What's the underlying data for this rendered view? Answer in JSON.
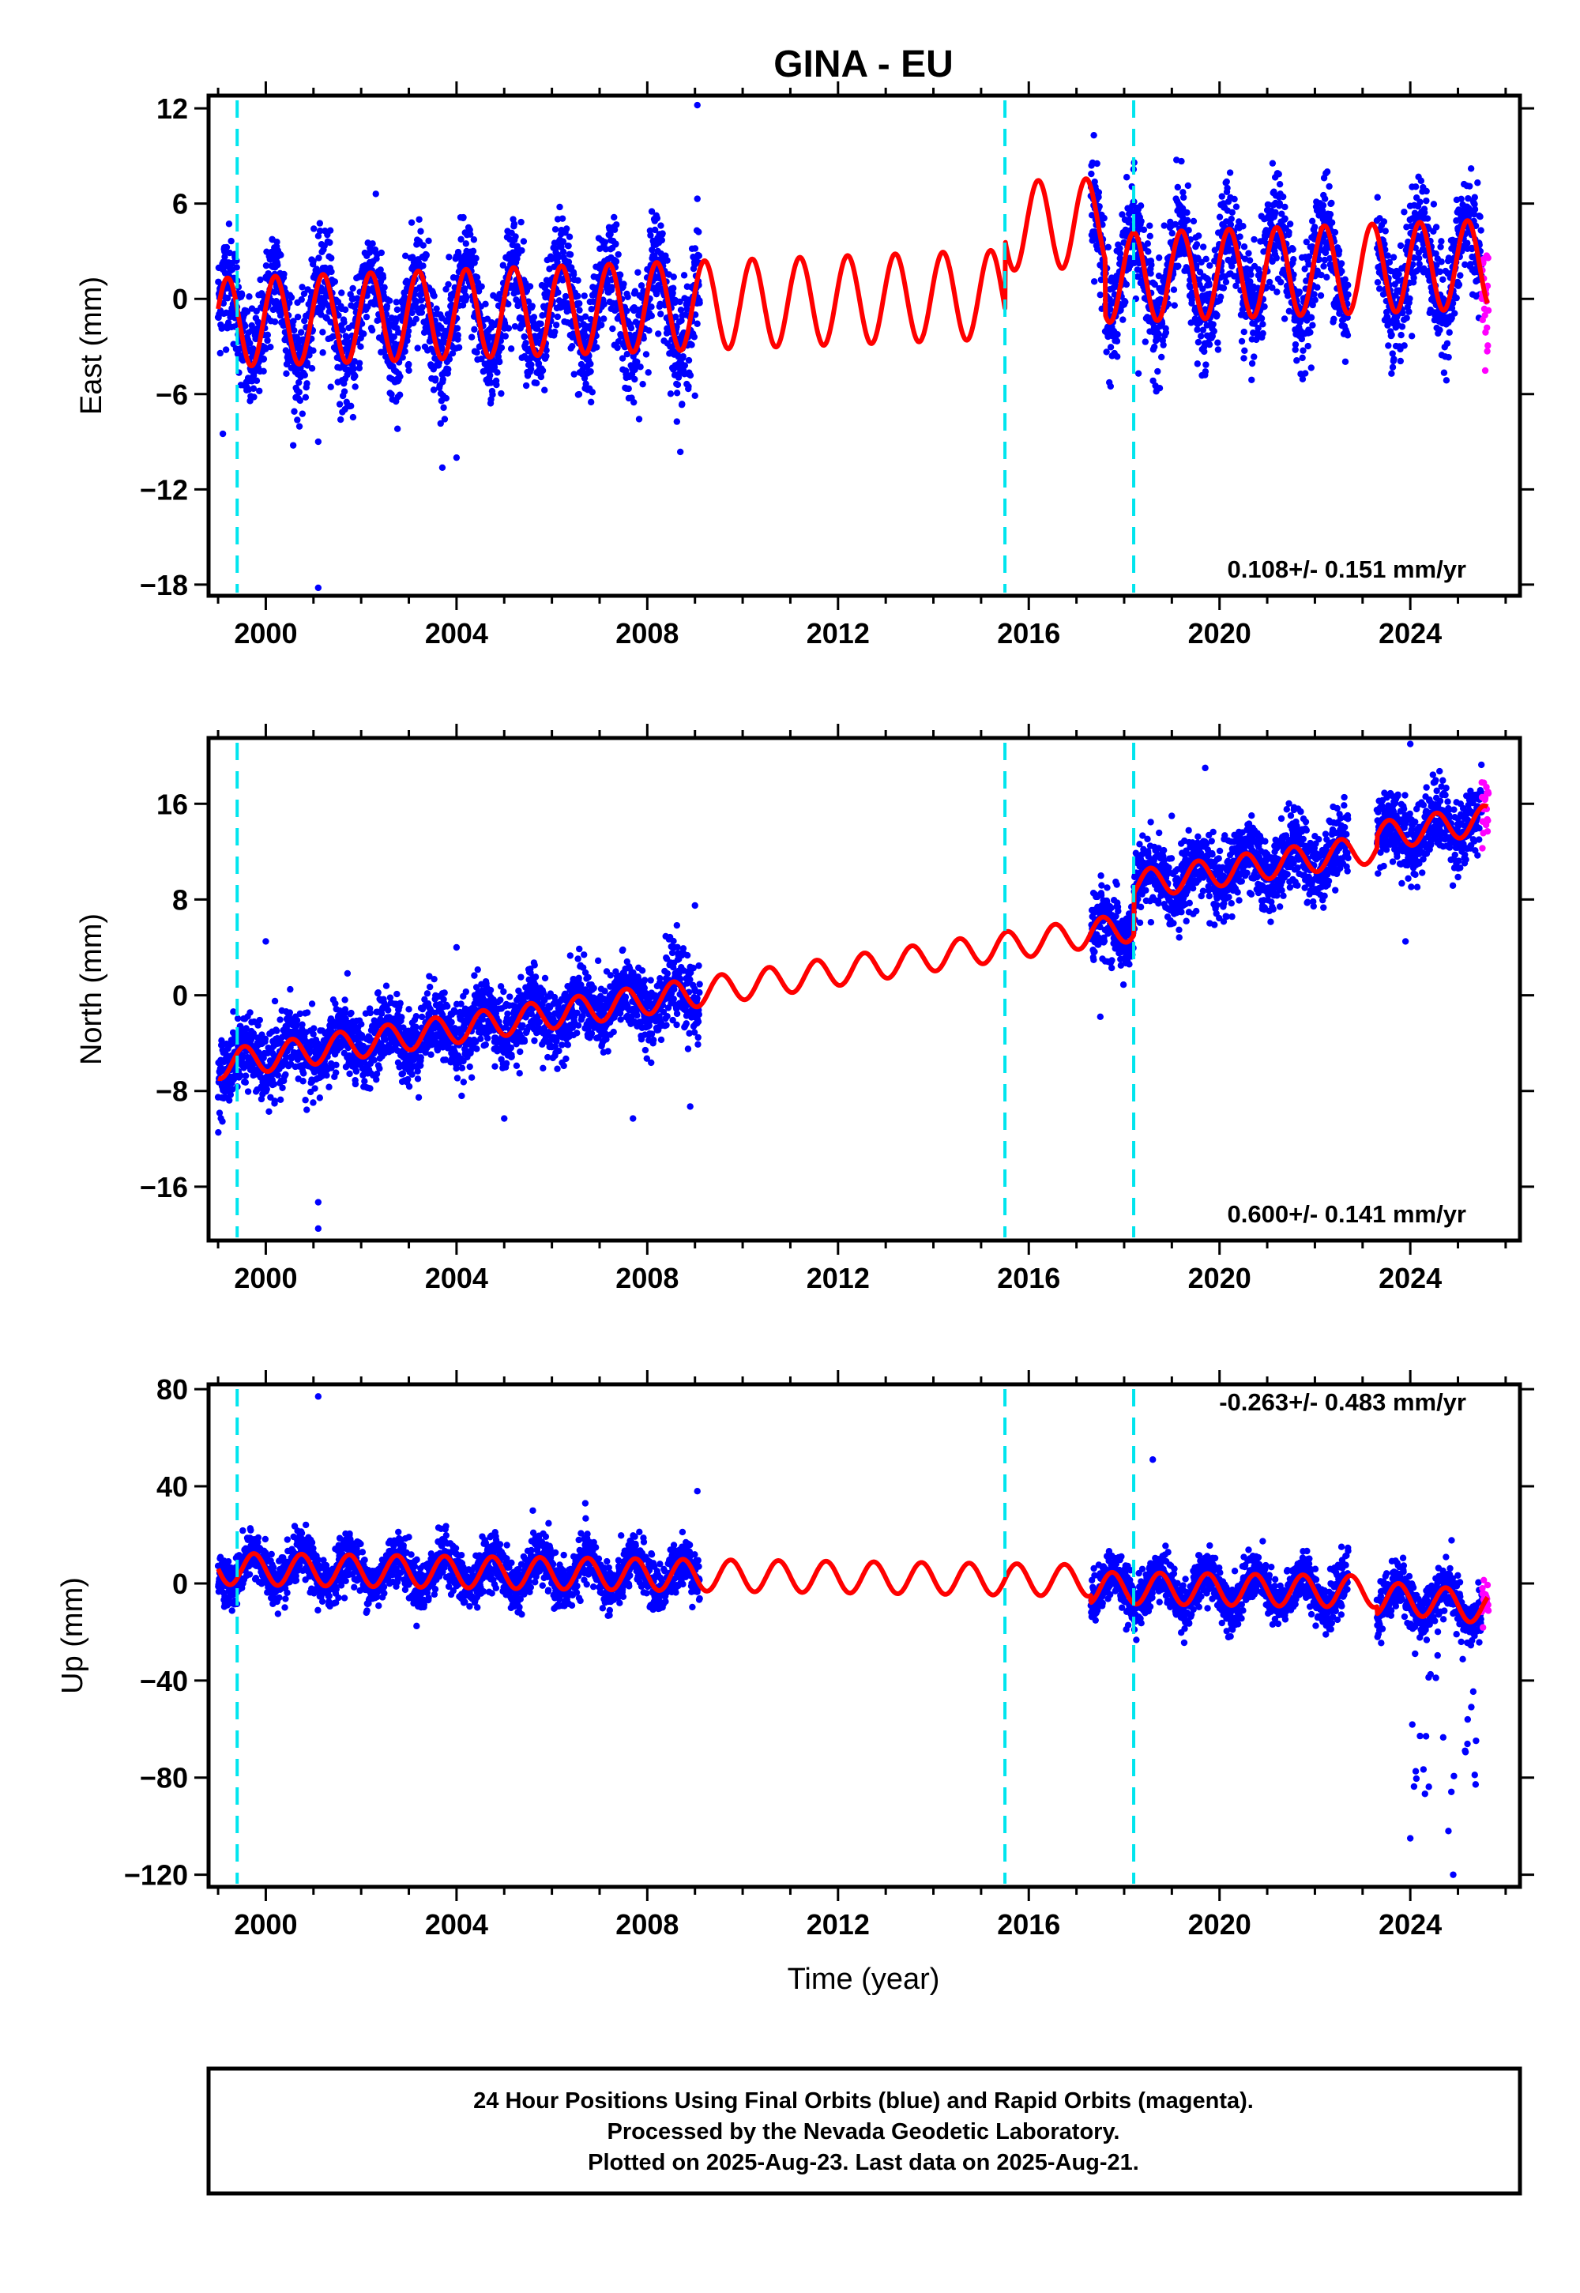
{
  "title": "GINA - EU",
  "xlabel": "Time (year)",
  "footer": {
    "line1": "24 Hour Positions Using Final Orbits (blue) and Rapid Orbits (magenta).",
    "line2": "Processed by the Nevada Geodetic Laboratory.",
    "line3": "Plotted on 2025-Aug-23. Last data on 2025-Aug-21."
  },
  "colors": {
    "final": "#0000ff",
    "rapid": "#ff00ff",
    "model": "#ff0000",
    "steps": "#00e5ee"
  },
  "chart_data": [
    {
      "type": "scatter",
      "ylabel": "East (mm)",
      "rate": "0.108+/- 0.151 mm/yr",
      "xlim": [
        1998.8,
        2026.3
      ],
      "ylim": [
        -18.7,
        12.8
      ],
      "x_ticks": [
        2000,
        2004,
        2008,
        2012,
        2016,
        2020,
        2024
      ],
      "y_ticks": [
        12,
        6,
        0,
        -6,
        -12,
        -18
      ],
      "step_lines": [
        1999.4,
        2015.5,
        2018.2
      ],
      "gaps": [
        [
          2009.1,
          2017.3
        ],
        [
          2022.7,
          2023.3
        ]
      ],
      "trend": {
        "x0": 1999.0,
        "y0": -1.5,
        "slope": 0.108,
        "amp": 2.8,
        "phase": 0.95,
        "offsets": [
          [
            2015.5,
            4.3
          ],
          [
            2017.6,
            -3.5
          ]
        ]
      },
      "scatter_sigma": 1.7,
      "outliers": [
        [
          2001.1,
          -18.2
        ],
        [
          2009.05,
          12.2
        ],
        [
          2009.05,
          6.3
        ],
        [
          2004.0,
          -10.0
        ],
        [
          2018.3,
          -4.7
        ],
        [
          1999.1,
          -8.5
        ],
        [
          2001.1,
          -9.0
        ],
        [
          2009.0,
          -6.1
        ]
      ]
    },
    {
      "type": "scatter",
      "ylabel": "North (mm)",
      "rate": "0.600+/- 0.141 mm/yr",
      "xlim": [
        1998.8,
        2026.3
      ],
      "ylim": [
        -20.5,
        21.5
      ],
      "x_ticks": [
        2000,
        2004,
        2008,
        2012,
        2016,
        2020,
        2024
      ],
      "y_ticks": [
        16,
        8,
        0,
        -8,
        -16
      ],
      "step_lines": [
        1999.4,
        2015.5,
        2018.2
      ],
      "gaps": [
        [
          2009.1,
          2017.3
        ],
        [
          2022.7,
          2023.3
        ]
      ],
      "trend": {
        "x0": 1999.0,
        "y0": -5.8,
        "slope": 0.6,
        "amp": 1.2,
        "phase": 0.3,
        "offsets": [
          [
            2018.2,
            3.5
          ],
          [
            2023.3,
            1.0
          ]
        ]
      },
      "scatter_sigma": 1.5,
      "outliers": [
        [
          2001.1,
          -19.5
        ],
        [
          2001.1,
          -17.3
        ],
        [
          2000.0,
          4.5
        ],
        [
          2004.0,
          4.0
        ],
        [
          2007.7,
          -10.3
        ],
        [
          2008.9,
          -9.3
        ],
        [
          2009.0,
          7.5
        ],
        [
          2019.7,
          19.0
        ],
        [
          2023.9,
          4.5
        ],
        [
          2024.0,
          21.0
        ],
        [
          2017.5,
          -1.8
        ],
        [
          2005.0,
          -10.3
        ]
      ]
    },
    {
      "type": "scatter",
      "ylabel": "Up (mm)",
      "rate": "-0.263+/- 0.483 mm/yr",
      "xlim": [
        1998.8,
        2026.3
      ],
      "ylim": [
        -125,
        82
      ],
      "x_ticks": [
        2000,
        2004,
        2008,
        2012,
        2016,
        2020,
        2024
      ],
      "y_ticks": [
        80,
        40,
        0,
        -40,
        -80,
        -120
      ],
      "step_lines": [
        1999.4,
        2015.5,
        2018.2
      ],
      "gaps": [
        [
          2009.1,
          2017.3
        ],
        [
          2022.7,
          2023.3
        ]
      ],
      "trend": {
        "x0": 1999.0,
        "y0": 6.0,
        "slope": -0.263,
        "amp": 6.5,
        "phase": 0.5,
        "offsets": [
          [
            2017.3,
            -3.0
          ],
          [
            2023.3,
            -3.0
          ]
        ]
      },
      "scatter_sigma": 5.0,
      "subsidence": [
        2024.0,
        2025.6
      ],
      "outliers": [
        [
          2001.1,
          77.0
        ],
        [
          2009.05,
          38.0
        ],
        [
          2018.6,
          51.0
        ],
        [
          2006.7,
          33.0
        ],
        [
          2024.0,
          -105.0
        ],
        [
          2024.9,
          -120.0
        ],
        [
          2024.8,
          -102.0
        ],
        [
          2005.6,
          30.0
        ]
      ]
    }
  ]
}
